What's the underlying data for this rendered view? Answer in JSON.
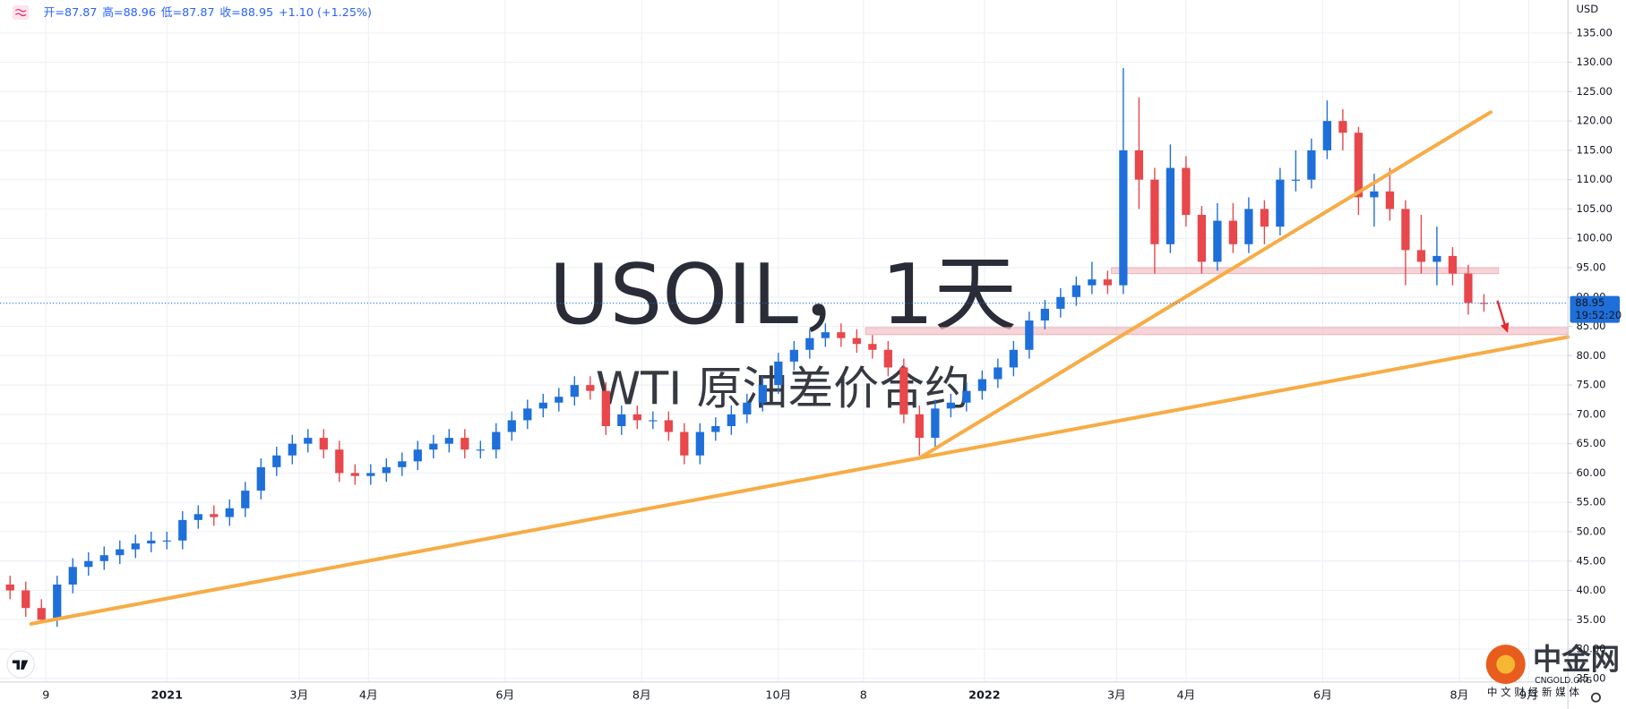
{
  "chart_data": {
    "type": "candlestick",
    "title": "USOIL，1天",
    "subtitle": "WTI 原油差价合约",
    "ohlc_header": [
      "开=87.87",
      "高=88.96",
      "低=87.87",
      "收=88.95",
      "+1.10 (+1.25%)"
    ],
    "currency": "USD",
    "up_color": "#1e6fd9",
    "down_color": "#e8474b",
    "x": [
      -70,
      -63,
      -56,
      -49,
      -42,
      -35,
      -28,
      -21,
      -14,
      -7,
      0,
      7,
      14,
      21,
      28,
      35,
      42,
      49,
      56,
      63,
      70,
      77,
      84,
      91,
      98,
      105,
      112,
      119,
      126,
      133,
      140,
      147,
      154,
      161,
      168,
      175,
      182,
      189,
      196,
      203,
      210,
      217,
      224,
      231,
      238,
      245,
      252,
      259,
      266,
      273,
      280,
      287,
      294,
      301,
      308,
      315,
      322,
      329,
      336,
      343,
      350,
      357,
      364,
      371,
      378,
      385,
      392,
      399,
      406,
      413,
      420,
      427,
      434,
      441,
      448,
      455,
      462,
      469,
      476,
      483,
      490,
      497,
      504,
      511,
      518,
      525,
      532,
      539,
      546,
      553,
      560,
      567,
      574,
      581,
      588
    ],
    "open": [
      41,
      40,
      37,
      35,
      41,
      44,
      45,
      46,
      47,
      48,
      48.5,
      48.5,
      52,
      53,
      52.5,
      54,
      57,
      61,
      63,
      65,
      66,
      64,
      60,
      59.5,
      60,
      61,
      62,
      64,
      65,
      66,
      64,
      64,
      67,
      69,
      71,
      72,
      73,
      75,
      74,
      68,
      70,
      69,
      69,
      67,
      63,
      67,
      68,
      70,
      72,
      75,
      79,
      81,
      83,
      84,
      83,
      82,
      81,
      78,
      70,
      66,
      71,
      72,
      74,
      76,
      78,
      81,
      86,
      88,
      90,
      92,
      93,
      92,
      115,
      110,
      99,
      112,
      104,
      96,
      103,
      99,
      105,
      102,
      110,
      110,
      115,
      120,
      118,
      107,
      108,
      105,
      98,
      96,
      97,
      94,
      89
    ],
    "high": [
      42.5,
      41.5,
      38.5,
      42.5,
      45.5,
      46.5,
      47.5,
      48.5,
      49.5,
      50,
      50,
      53.5,
      54.5,
      54.5,
      55.5,
      58.5,
      62.5,
      64.5,
      66.5,
      67.5,
      67.5,
      65.5,
      61.5,
      61.5,
      62.5,
      63.5,
      65.5,
      66.5,
      67.5,
      67.5,
      65.5,
      68.5,
      70.5,
      72.5,
      73.5,
      74.5,
      76.5,
      76.5,
      75.5,
      71.5,
      71.5,
      70.5,
      70.5,
      68.5,
      68.5,
      69.5,
      71.5,
      73.5,
      76.5,
      80.5,
      82.5,
      84.5,
      85.5,
      85.5,
      84.5,
      83.5,
      82.5,
      79.5,
      71.5,
      72.5,
      73.5,
      75.5,
      77.5,
      79.5,
      82.5,
      87.5,
      89.5,
      91.5,
      93.5,
      96,
      94.5,
      129,
      124,
      112,
      116,
      114,
      105.5,
      106,
      106,
      107,
      106.5,
      112,
      115,
      117,
      123.5,
      122,
      119,
      111,
      112,
      106.5,
      104,
      102,
      98.5,
      95.5,
      90.5
    ],
    "low": [
      38.5,
      35.5,
      34.5,
      33.8,
      39.5,
      42.5,
      43.5,
      44.5,
      45.5,
      46.5,
      47,
      47,
      50.5,
      51,
      51,
      52.5,
      55.5,
      59.5,
      61.5,
      63.5,
      62.5,
      58.5,
      58,
      58,
      58.5,
      59.5,
      60.5,
      62.5,
      63.5,
      62.5,
      62.5,
      62.5,
      65.5,
      67.5,
      69.5,
      70.5,
      71.5,
      72.5,
      66.5,
      66.5,
      67.5,
      67.5,
      65.5,
      61.5,
      61.5,
      65.5,
      66.5,
      68.5,
      70.5,
      73.5,
      77.5,
      79.5,
      81.5,
      81.5,
      80.5,
      79.5,
      76.5,
      68.5,
      63,
      64.5,
      69.5,
      70.5,
      72.5,
      74.5,
      76.5,
      79.5,
      84.5,
      86.5,
      88.5,
      90.5,
      90.5,
      90.5,
      105,
      94,
      97.5,
      102,
      94,
      94.5,
      97.5,
      97.5,
      99,
      100.5,
      108,
      108.5,
      113.5,
      115,
      104,
      102,
      103,
      92,
      94,
      92,
      92,
      87,
      87.5
    ],
    "close": [
      40,
      37,
      35,
      41,
      44,
      45,
      46,
      47,
      48,
      48.5,
      48.5,
      52,
      53,
      52.5,
      54,
      57,
      61,
      63,
      65,
      66,
      64,
      60,
      59.5,
      60,
      61,
      62,
      64,
      65,
      66,
      64,
      64,
      67,
      69,
      71,
      72,
      73,
      75,
      74,
      68,
      70,
      69,
      69,
      67,
      63,
      67,
      68,
      70,
      72,
      75,
      79,
      81,
      83,
      84,
      83,
      82,
      81,
      78,
      70,
      66,
      71,
      72,
      74,
      76,
      78,
      81,
      86,
      88,
      90,
      92,
      93,
      92,
      115,
      110,
      99,
      112,
      104,
      96,
      103,
      99,
      105,
      102,
      110,
      110,
      115,
      120,
      118,
      107,
      108,
      105,
      98,
      96,
      97,
      94,
      89,
      88.95
    ],
    "xlim": [
      -74.5,
      625.5
    ],
    "xticks": [
      {
        "value": -54,
        "label": "9"
      },
      {
        "value": 0,
        "label": "2021"
      },
      {
        "value": 59,
        "label": "3月"
      },
      {
        "value": 90,
        "label": "4月"
      },
      {
        "value": 151,
        "label": "6月"
      },
      {
        "value": 212,
        "label": "8月"
      },
      {
        "value": 273,
        "label": "10月"
      },
      {
        "value": 311,
        "label": "8"
      },
      {
        "value": 365,
        "label": "2022"
      },
      {
        "value": 424,
        "label": "3月"
      },
      {
        "value": 455,
        "label": "4月"
      },
      {
        "value": 516,
        "label": "6月"
      },
      {
        "value": 577,
        "label": "8月"
      },
      {
        "value": 608,
        "label": "9月"
      }
    ],
    "ylim": [
      24.4,
      140.6
    ],
    "yticks": [
      {
        "value": 25,
        "label": "25.00"
      },
      {
        "value": 30,
        "label": "30.00"
      },
      {
        "value": 35,
        "label": "35.00"
      },
      {
        "value": 40,
        "label": "40.00"
      },
      {
        "value": 45,
        "label": "45.00"
      },
      {
        "value": 50,
        "label": "50.00"
      },
      {
        "value": 55,
        "label": "55.00"
      },
      {
        "value": 60,
        "label": "60.00"
      },
      {
        "value": 65,
        "label": "65.00"
      },
      {
        "value": 70,
        "label": "70.00"
      },
      {
        "value": 75,
        "label": "75.00"
      },
      {
        "value": 80,
        "label": "80.00"
      },
      {
        "value": 85,
        "label": "85.00"
      },
      {
        "value": 90,
        "label": "90.00"
      },
      {
        "value": 95,
        "label": "95.00"
      },
      {
        "value": 100,
        "label": "100.00"
      },
      {
        "value": 105,
        "label": "105.00"
      },
      {
        "value": 110,
        "label": "110.00"
      },
      {
        "value": 115,
        "label": "115.00"
      },
      {
        "value": 120,
        "label": "120.00"
      },
      {
        "value": 125,
        "label": "125.00"
      },
      {
        "value": 130,
        "label": "130.00"
      },
      {
        "value": 135,
        "label": "135.00"
      }
    ],
    "grid": true,
    "last_price": 88.95,
    "countdown": "19:52:20",
    "trendlines": [
      {
        "x": [
          -60.6,
          625.5
        ],
        "y": [
          34.3,
          83.2
        ],
        "color": "#f7ac45"
      },
      {
        "x": [
          336.6,
          591
        ],
        "y": [
          62.7,
          121.5
        ],
        "color": "#f7ac45"
      }
    ],
    "zones": [
      {
        "x": [
          421.7,
          594.5
        ],
        "y": [
          94,
          95
        ],
        "color": "#f3c6cc"
      },
      {
        "x": [
          312,
          625.5
        ],
        "y": [
          83.6,
          84.8
        ],
        "color": "#f3c6cc"
      }
    ],
    "logo": {
      "name": "中金网",
      "site": "CNGOLD.ORG",
      "slogan": "中 文 财 经 新 媒 体"
    }
  }
}
